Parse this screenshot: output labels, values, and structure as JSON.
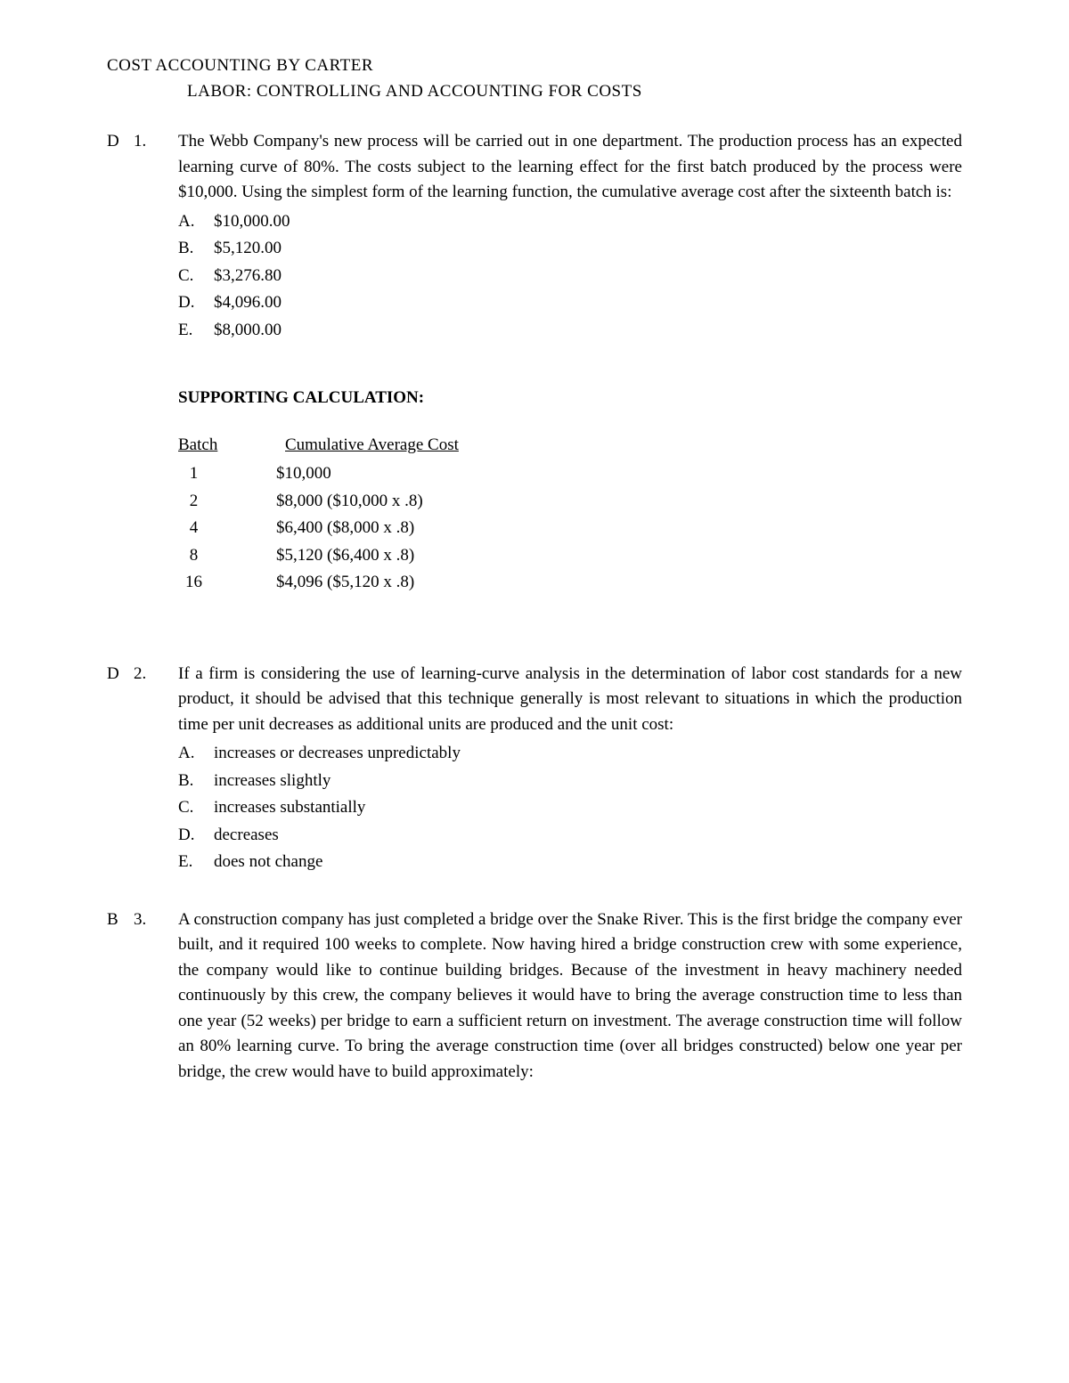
{
  "header": {
    "line1": "COST ACCOUNTING BY CARTER",
    "line2": "LABOR: CONTROLLING AND ACCOUNTING FOR COSTS"
  },
  "questions": [
    {
      "answer_key": "D",
      "number": "1.",
      "text": "The Webb Company's new process will be carried out in one department. The production process has an expected learning curve of 80%. The costs subject to the learning effect for the first batch produced by the process were $10,000. Using the simplest form of the learning function, the cumulative average cost after the sixteenth batch is:",
      "options": [
        {
          "letter": "A.",
          "text": "$10,000.00"
        },
        {
          "letter": "B.",
          "text": "$5,120.00"
        },
        {
          "letter": "C.",
          "text": "$3,276.80"
        },
        {
          "letter": "D.",
          "text": "$4,096.00"
        },
        {
          "letter": "E.",
          "text": "$8,000.00"
        }
      ],
      "supporting_calc": {
        "title": "SUPPORTING CALCULATION:",
        "header_col1": "Batch",
        "header_col2": "Cumulative Average Cost",
        "rows": [
          {
            "batch": "1",
            "cost": "$10,000"
          },
          {
            "batch": "2",
            "cost": "$8,000 ($10,000 x .8)"
          },
          {
            "batch": "4",
            "cost": "$6,400 ($8,000 x .8)"
          },
          {
            "batch": "8",
            "cost": "$5,120 ($6,400 x .8)"
          },
          {
            "batch": "16",
            "cost": "$4,096 ($5,120 x .8)"
          }
        ]
      }
    },
    {
      "answer_key": "D",
      "number": "2.",
      "text": "If a firm is considering the use of learning-curve analysis in the determination of labor cost standards for a new product, it should be advised that this technique generally is most relevant to situations in which the production time per unit decreases as additional units are produced and the unit cost:",
      "options": [
        {
          "letter": "A.",
          "text": "increases or decreases unpredictably"
        },
        {
          "letter": "B.",
          "text": "increases slightly"
        },
        {
          "letter": "C.",
          "text": "increases substantially"
        },
        {
          "letter": "D.",
          "text": "decreases"
        },
        {
          "letter": "E.",
          "text": "does not change"
        }
      ]
    },
    {
      "answer_key": "B",
      "number": "3.",
      "text": "A construction company has just completed a bridge over the Snake River. This is the first bridge the company ever built, and it required 100 weeks to complete. Now having hired a bridge construction crew with some experience, the company would like to continue building bridges. Because of the investment in heavy machinery needed continuously by this crew, the company believes it would have to bring the average construction time to less than one year (52 weeks) per bridge to earn a sufficient return on investment. The average construction time will follow an 80% learning curve. To bring the average construction time (over all bridges constructed) below one year per bridge, the crew would have to build approximately:",
      "options": []
    }
  ]
}
